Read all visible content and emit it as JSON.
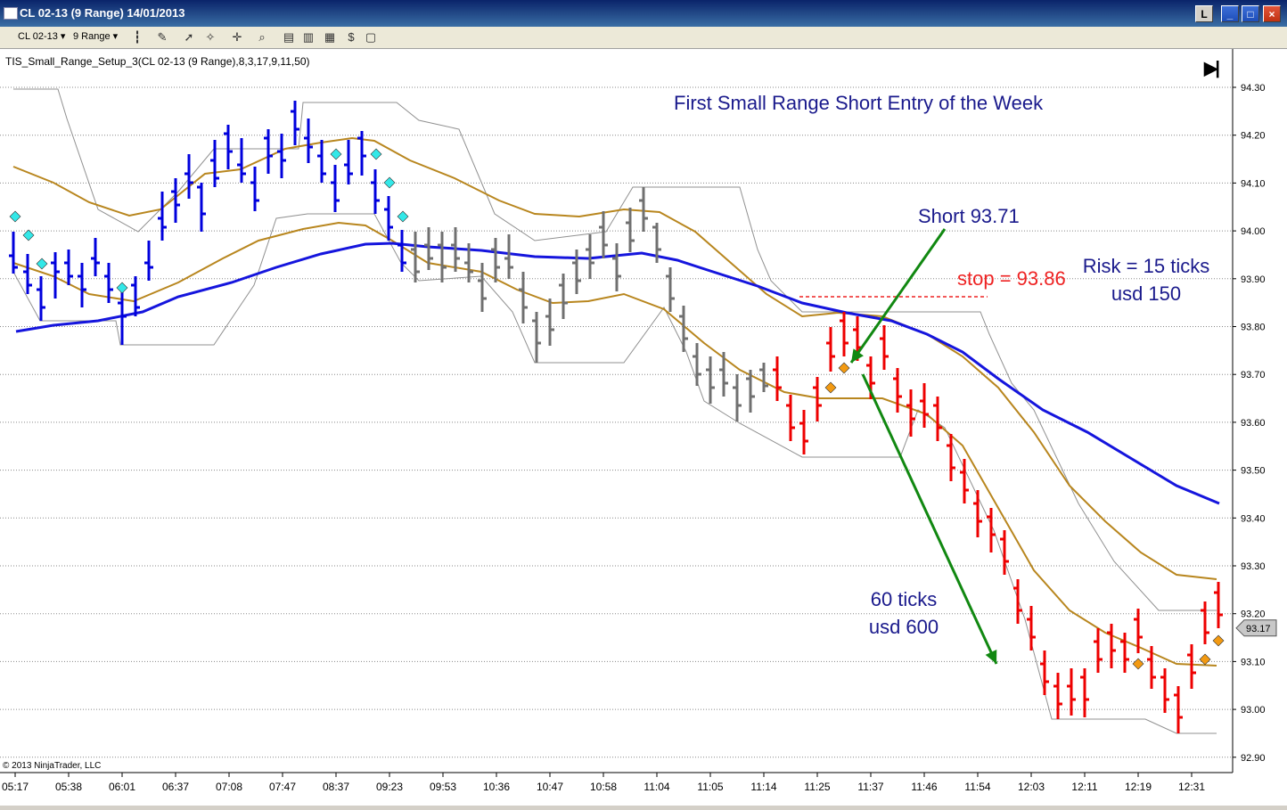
{
  "window": {
    "title": "CL 02-13 (9 Range)  14/01/2013",
    "buttons": {
      "l": "L",
      "min": "_",
      "max": "□",
      "close": "×"
    }
  },
  "toolbar": {
    "instrument": "CL 02-13",
    "period": "9 Range"
  },
  "indicator_label": "TIS_Small_Range_Setup_3(CL 02-13 (9 Range),8,3,17,9,11,50)",
  "copyright": "© 2013 NinjaTrader, LLC",
  "end_button": "▶|",
  "annotations": {
    "title": "First Small Range Short Entry of the Week",
    "short": "Short 93.71",
    "stop": "stop = 93.86",
    "risk_line1": "Risk = 15 ticks",
    "risk_line2": "usd 150",
    "gain_line1": "60 ticks",
    "gain_line2": "usd 600"
  },
  "price_marker": "93.17",
  "chart_data": {
    "type": "ohlc",
    "ylim": [
      92.88,
      94.33
    ],
    "y_ticks": [
      "94.30",
      "94.20",
      "94.10",
      "94.00",
      "93.90",
      "93.80",
      "93.70",
      "93.60",
      "93.50",
      "93.40",
      "93.30",
      "93.20",
      "93.10",
      "93.00",
      "92.90"
    ],
    "x_ticks": [
      "05:17",
      "05:38",
      "06:01",
      "06:37",
      "07:08",
      "07:47",
      "08:37",
      "09:23",
      "09:53",
      "10:36",
      "10:47",
      "10:58",
      "11:04",
      "11:05",
      "11:14",
      "11:25",
      "11:37",
      "11:46",
      "11:54",
      "12:03",
      "12:11",
      "12:19",
      "12:31"
    ],
    "entry_price": 93.71,
    "stop_price": 93.86,
    "target_price": 93.11,
    "last_price": 93.17
  },
  "colors": {
    "up_bars": "#0000dd",
    "neutral_bars": "#707070",
    "down_bars": "#ee0000",
    "ma_blue": "#1515dd",
    "ma_gold": "#b8861e",
    "band": "#909090",
    "arrow": "#118811",
    "text_navy": "#1a1a8c",
    "text_red": "#ee2222"
  }
}
